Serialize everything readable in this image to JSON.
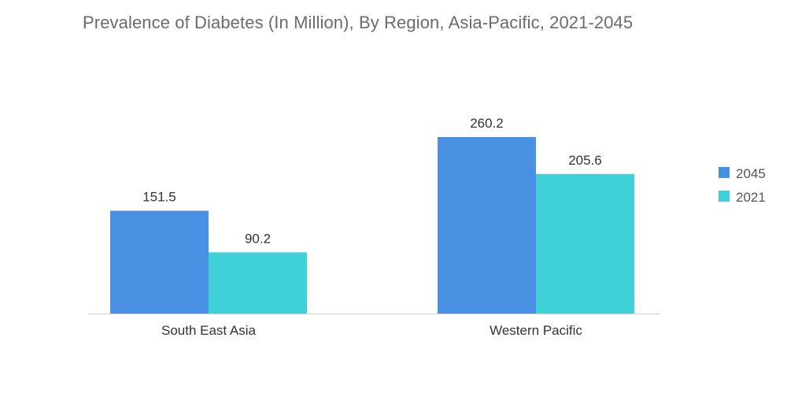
{
  "chart_data": {
    "type": "bar",
    "title": "Prevalence of Diabetes (In Million), By Region, Asia-Pacific, 2021-2045",
    "categories": [
      "South East Asia",
      "Western Pacific"
    ],
    "series": [
      {
        "name": "2045",
        "values": [
          151.5,
          260.2
        ],
        "color": "#4a90e2"
      },
      {
        "name": "2021",
        "values": [
          90.2,
          205.6
        ],
        "color": "#40d0d8"
      }
    ],
    "value_labels": [
      [
        "151.5",
        "260.2"
      ],
      [
        "90.2",
        "205.6"
      ]
    ],
    "xlabel": "",
    "ylabel": "",
    "ylim": [
      0,
      300
    ],
    "grid": false,
    "legend_position": "right"
  }
}
